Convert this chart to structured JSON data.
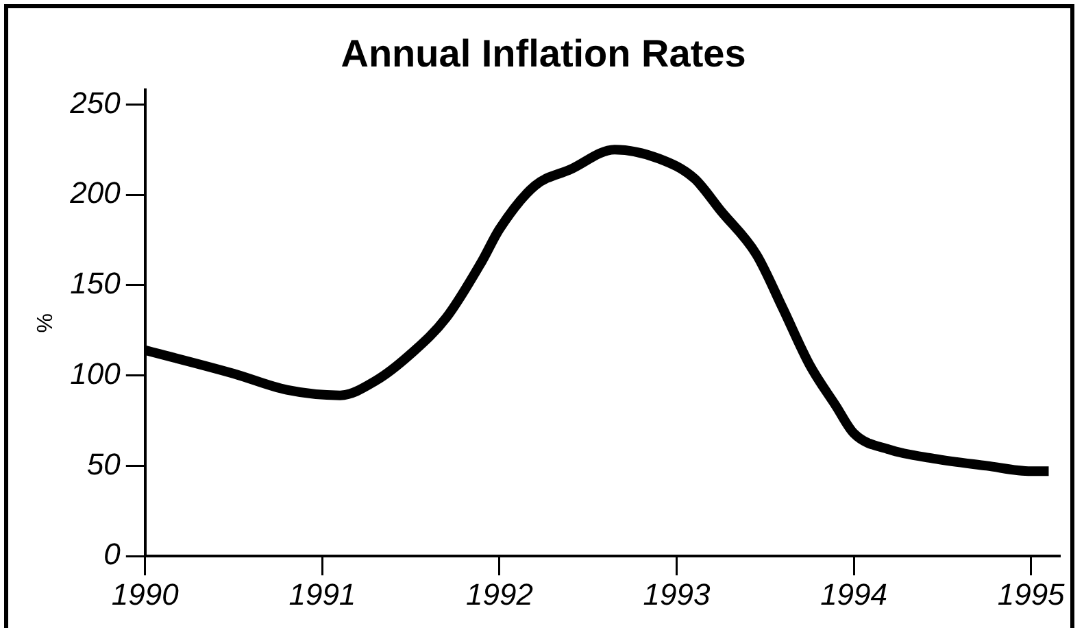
{
  "chart_data": {
    "type": "line",
    "title": "Annual Inflation Rates",
    "ylabel": "%",
    "x": [
      1990,
      1990.5,
      1990.8,
      1991.1,
      1991.3,
      1991.5,
      1991.7,
      1991.9,
      1992,
      1992.2,
      1992.4,
      1992.65,
      1992.9,
      1993.1,
      1993.25,
      1993.45,
      1993.6,
      1993.75,
      1993.9,
      1994,
      1994.2,
      1994.45,
      1994.75,
      1995,
      1995.1
    ],
    "series": [
      {
        "color": "#000000",
        "values": [
          114,
          101,
          92,
          89,
          97,
          112,
          132,
          163,
          181,
          205,
          214,
          225,
          220,
          209,
          191,
          167,
          137,
          106,
          83,
          68,
          59,
          54,
          50,
          47,
          47
        ]
      }
    ],
    "xlim": [
      1990,
      1995.16
    ],
    "xticks": [
      1990,
      1991,
      1992,
      1993,
      1994,
      1995
    ],
    "ylim": [
      0,
      258
    ],
    "yticks": [
      0,
      50,
      100,
      150,
      200,
      250
    ],
    "grid": false,
    "legend": false,
    "marker": "none",
    "line_style": "solid"
  }
}
